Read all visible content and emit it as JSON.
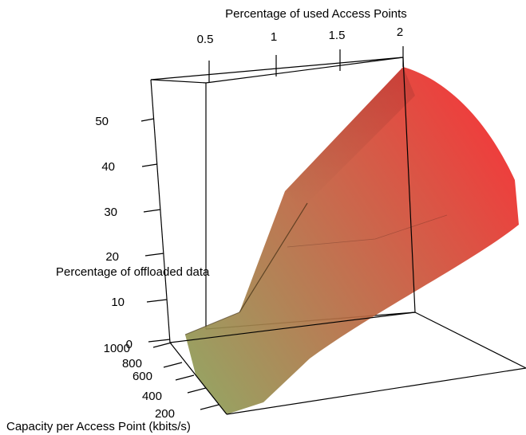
{
  "chart_data": {
    "type": "surface3d",
    "xlabel": "Percentage of used Access Points",
    "ylabel": "Capacity per Access Point (kbits/s)",
    "zlabel": "Percentage of offloaded data",
    "x_ticks": [
      "0.5",
      "1",
      "1.5",
      "2"
    ],
    "y_ticks": [
      "200",
      "400",
      "600",
      "800",
      "1000"
    ],
    "z_ticks": [
      "0",
      "10",
      "20",
      "30",
      "40",
      "50"
    ],
    "xlim": [
      0.3,
      2.0
    ],
    "ylim": [
      100,
      1000
    ],
    "zlim": [
      0,
      57
    ],
    "color_low": "#8f9a55",
    "color_high": "#ef2b2b",
    "surface_at_max_x": [
      {
        "capacity": 100,
        "offloaded": 33
      },
      {
        "capacity": 300,
        "offloaded": 44
      },
      {
        "capacity": 500,
        "offloaded": 50
      },
      {
        "capacity": 700,
        "offloaded": 54
      },
      {
        "capacity": 1000,
        "offloaded": 57
      }
    ]
  }
}
